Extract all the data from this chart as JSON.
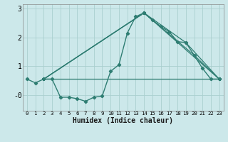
{
  "title": "",
  "xlabel": "Humidex (Indice chaleur)",
  "background_color": "#cce8ea",
  "line_color": "#2e7d72",
  "grid_color": "#aacfcf",
  "xlim": [
    -0.5,
    23.5
  ],
  "ylim": [
    -0.55,
    3.15
  ],
  "xticks": [
    0,
    1,
    2,
    3,
    4,
    5,
    6,
    7,
    8,
    9,
    10,
    11,
    12,
    13,
    14,
    15,
    16,
    17,
    18,
    19,
    20,
    21,
    22,
    23
  ],
  "yticks": [
    0.0,
    1.0,
    2.0,
    3.0
  ],
  "ytick_labels": [
    "-0",
    "1",
    "2",
    "3"
  ],
  "main_line": {
    "x": [
      0,
      1,
      2,
      3,
      4,
      5,
      6,
      7,
      8,
      9,
      10,
      11,
      12,
      13,
      14,
      15,
      16,
      17,
      18,
      19,
      20,
      21,
      22,
      23
    ],
    "y": [
      0.55,
      0.42,
      0.55,
      0.55,
      -0.08,
      -0.08,
      -0.13,
      -0.22,
      -0.08,
      -0.04,
      0.82,
      1.05,
      2.15,
      2.72,
      2.85,
      2.6,
      2.38,
      2.2,
      1.85,
      1.82,
      1.38,
      0.92,
      0.55,
      0.55
    ]
  },
  "straight_lines": [
    {
      "x": [
        2,
        23
      ],
      "y": [
        0.55,
        0.55
      ]
    },
    {
      "x": [
        2,
        14,
        23
      ],
      "y": [
        0.55,
        2.85,
        0.55
      ]
    },
    {
      "x": [
        2,
        14,
        19,
        23
      ],
      "y": [
        0.55,
        2.85,
        1.82,
        0.55
      ]
    },
    {
      "x": [
        2,
        14,
        20,
        23
      ],
      "y": [
        0.55,
        2.85,
        1.38,
        0.55
      ]
    }
  ]
}
